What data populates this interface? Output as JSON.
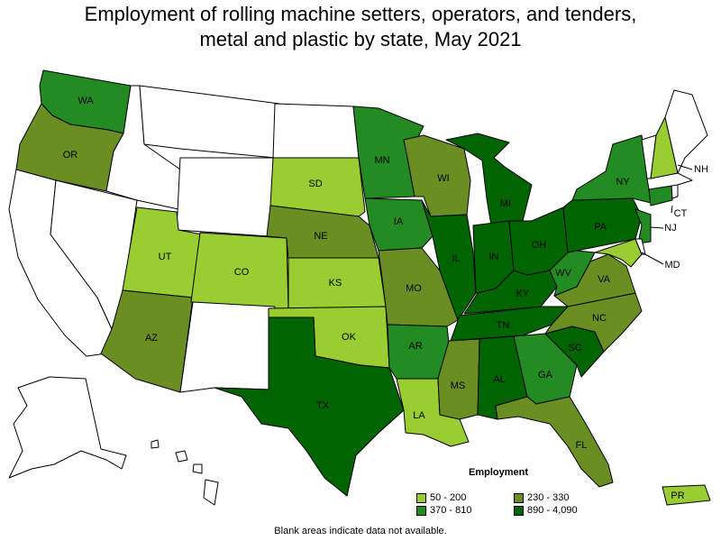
{
  "title": {
    "line1": "Employment of rolling machine setters, operators, and tenders,",
    "line2": "metal and plastic by state, May 2021"
  },
  "legend": {
    "title": "Employment",
    "bins": [
      {
        "label": "50 - 200",
        "color": "#9acd32"
      },
      {
        "label": "230 - 330",
        "color": "#6b8e23"
      },
      {
        "label": "370 - 810",
        "color": "#228b22"
      },
      {
        "label": "890 - 4,090",
        "color": "#006400"
      }
    ]
  },
  "colors": {
    "none": "#ffffff",
    "bin1": "#9acd32",
    "bin2": "#6b8e23",
    "bin3": "#228b22",
    "bin4": "#006400"
  },
  "note": "Blank areas indicate data not available.",
  "states": [
    {
      "abbr": "WA",
      "bin": 3
    },
    {
      "abbr": "OR",
      "bin": 2
    },
    {
      "abbr": "CA",
      "bin": 0
    },
    {
      "abbr": "NV",
      "bin": 0
    },
    {
      "abbr": "ID",
      "bin": 0
    },
    {
      "abbr": "MT",
      "bin": 0
    },
    {
      "abbr": "WY",
      "bin": 0
    },
    {
      "abbr": "UT",
      "bin": 1
    },
    {
      "abbr": "AZ",
      "bin": 2
    },
    {
      "abbr": "CO",
      "bin": 1
    },
    {
      "abbr": "NM",
      "bin": 0
    },
    {
      "abbr": "ND",
      "bin": 0
    },
    {
      "abbr": "SD",
      "bin": 1
    },
    {
      "abbr": "NE",
      "bin": 2
    },
    {
      "abbr": "KS",
      "bin": 1
    },
    {
      "abbr": "OK",
      "bin": 1
    },
    {
      "abbr": "TX",
      "bin": 4
    },
    {
      "abbr": "MN",
      "bin": 3
    },
    {
      "abbr": "IA",
      "bin": 3
    },
    {
      "abbr": "MO",
      "bin": 2
    },
    {
      "abbr": "AR",
      "bin": 3
    },
    {
      "abbr": "LA",
      "bin": 1
    },
    {
      "abbr": "WI",
      "bin": 2
    },
    {
      "abbr": "IL",
      "bin": 4
    },
    {
      "abbr": "MI",
      "bin": 4
    },
    {
      "abbr": "IN",
      "bin": 4
    },
    {
      "abbr": "OH",
      "bin": 4
    },
    {
      "abbr": "KY",
      "bin": 4
    },
    {
      "abbr": "TN",
      "bin": 4
    },
    {
      "abbr": "MS",
      "bin": 2
    },
    {
      "abbr": "AL",
      "bin": 4
    },
    {
      "abbr": "GA",
      "bin": 3
    },
    {
      "abbr": "FL",
      "bin": 2
    },
    {
      "abbr": "SC",
      "bin": 4
    },
    {
      "abbr": "NC",
      "bin": 2
    },
    {
      "abbr": "VA",
      "bin": 2
    },
    {
      "abbr": "WV",
      "bin": 3
    },
    {
      "abbr": "PA",
      "bin": 4
    },
    {
      "abbr": "NY",
      "bin": 3
    },
    {
      "abbr": "NJ",
      "bin": 3
    },
    {
      "abbr": "MD",
      "bin": 1
    },
    {
      "abbr": "DE",
      "bin": 0
    },
    {
      "abbr": "CT",
      "bin": 3
    },
    {
      "abbr": "RI",
      "bin": 0
    },
    {
      "abbr": "MA",
      "bin": 0
    },
    {
      "abbr": "VT",
      "bin": 0
    },
    {
      "abbr": "NH",
      "bin": 1
    },
    {
      "abbr": "ME",
      "bin": 0
    },
    {
      "abbr": "AK",
      "bin": 0
    },
    {
      "abbr": "HI",
      "bin": 0
    },
    {
      "abbr": "PR",
      "bin": 1
    }
  ]
}
